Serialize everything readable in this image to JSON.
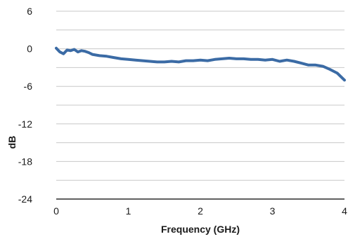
{
  "chart_data": {
    "type": "line",
    "xlabel": "Frequency (GHz)",
    "ylabel": "dB",
    "xlim": [
      0,
      4
    ],
    "ylim": [
      -24,
      6
    ],
    "x_ticks": [
      0,
      1,
      2,
      3,
      4
    ],
    "y_ticks": [
      6,
      0,
      -6,
      -12,
      -18,
      -24
    ],
    "grid": "horizontal",
    "series": [
      {
        "color": "#3b6ba5",
        "x": [
          0,
          0.05,
          0.1,
          0.15,
          0.2,
          0.25,
          0.3,
          0.35,
          0.4,
          0.45,
          0.5,
          0.6,
          0.7,
          0.8,
          0.9,
          1.0,
          1.1,
          1.2,
          1.3,
          1.4,
          1.5,
          1.6,
          1.7,
          1.8,
          1.9,
          2.0,
          2.1,
          2.2,
          2.3,
          2.4,
          2.5,
          2.6,
          2.7,
          2.8,
          2.9,
          3.0,
          3.1,
          3.2,
          3.3,
          3.4,
          3.5,
          3.6,
          3.7,
          3.8,
          3.9,
          4.0
        ],
        "y": [
          0.1,
          -0.5,
          -0.8,
          -0.2,
          -0.3,
          -0.1,
          -0.5,
          -0.3,
          -0.4,
          -0.6,
          -0.9,
          -1.1,
          -1.2,
          -1.4,
          -1.6,
          -1.7,
          -1.8,
          -1.9,
          -2.0,
          -2.1,
          -2.1,
          -2.0,
          -2.1,
          -1.9,
          -1.9,
          -1.8,
          -1.9,
          -1.7,
          -1.6,
          -1.5,
          -1.6,
          -1.6,
          -1.7,
          -1.7,
          -1.8,
          -1.7,
          -2.0,
          -1.8,
          -2.0,
          -2.3,
          -2.6,
          -2.6,
          -2.8,
          -3.3,
          -3.9,
          -5.0
        ]
      }
    ]
  }
}
